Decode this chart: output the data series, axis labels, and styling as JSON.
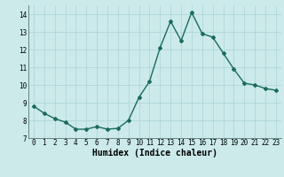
{
  "x": [
    0,
    1,
    2,
    3,
    4,
    5,
    6,
    7,
    8,
    9,
    10,
    11,
    12,
    13,
    14,
    15,
    16,
    17,
    18,
    19,
    20,
    23
  ],
  "y": [
    8.8,
    8.4,
    8.1,
    7.9,
    7.5,
    7.5,
    7.65,
    7.5,
    7.55,
    8.0,
    9.3,
    10.2,
    12.1,
    13.6,
    12.5,
    14.1,
    12.9,
    12.7,
    11.8,
    10.9,
    10.1,
    9.7
  ],
  "x_full": [
    0,
    1,
    2,
    3,
    4,
    5,
    6,
    7,
    8,
    9,
    10,
    11,
    12,
    13,
    14,
    15,
    16,
    17,
    18,
    19,
    20,
    21,
    22,
    23
  ],
  "y_full": [
    8.8,
    8.4,
    8.1,
    7.9,
    7.5,
    7.5,
    7.65,
    7.5,
    7.55,
    8.0,
    9.3,
    10.2,
    12.1,
    13.6,
    12.5,
    14.1,
    12.9,
    12.7,
    11.8,
    10.9,
    10.1,
    10.0,
    9.8,
    9.7
  ],
  "line_color": "#1a6b5a",
  "marker": "D",
  "marker_size": 2.0,
  "bg_color": "#cceaea",
  "grid_color": "#aad4d4",
  "xlabel": "Humidex (Indice chaleur)",
  "xlim": [
    -0.5,
    23.5
  ],
  "ylim": [
    7,
    14.5
  ],
  "yticks": [
    7,
    8,
    9,
    10,
    11,
    12,
    13,
    14
  ],
  "xticks": [
    0,
    1,
    2,
    3,
    4,
    5,
    6,
    7,
    8,
    9,
    10,
    11,
    12,
    13,
    14,
    15,
    16,
    17,
    18,
    19,
    20,
    21,
    22,
    23
  ],
  "tick_fontsize": 5.5,
  "xlabel_fontsize": 7.0,
  "linewidth": 1.0
}
